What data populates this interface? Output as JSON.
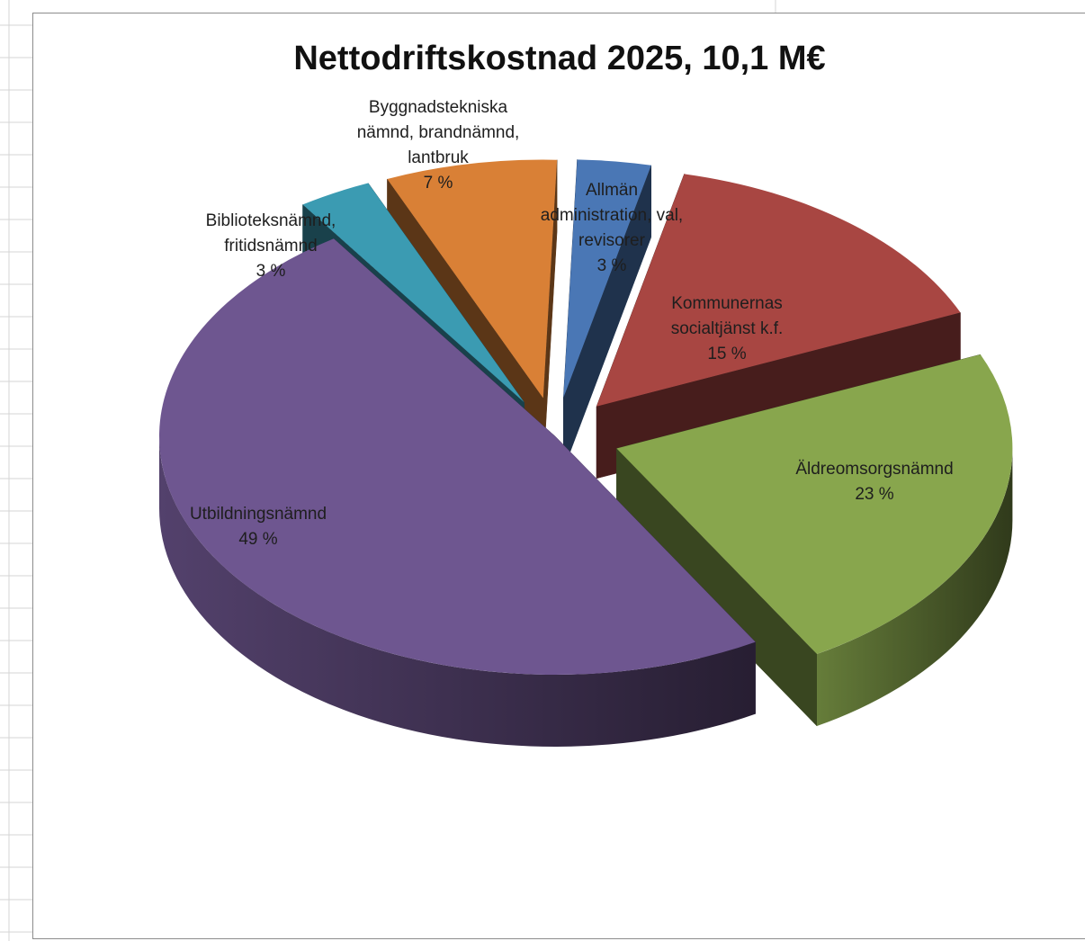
{
  "chart_data": {
    "type": "pie",
    "title": "Nettodriftskostnad 2025, 10,1 M€",
    "slices": [
      {
        "label_lines": [
          "Allmän",
          "administration, val,",
          "revisorer"
        ],
        "pct_text": "3 %",
        "value": 3,
        "color": "#4a77b5"
      },
      {
        "label_lines": [
          "Kommunernas",
          "socialtjänst k.f."
        ],
        "pct_text": "15 %",
        "value": 15,
        "color": "#a84642"
      },
      {
        "label_lines": [
          "Äldreomsorgsnämnd"
        ],
        "pct_text": "23 %",
        "value": 23,
        "color": "#88a64d"
      },
      {
        "label_lines": [
          "Utbildningsnämnd"
        ],
        "pct_text": "49 %",
        "value": 49,
        "color": "#6e5690"
      },
      {
        "label_lines": [
          "Biblioteksnämnd,",
          "fritidsnämnd"
        ],
        "pct_text": "3 %",
        "value": 3,
        "color": "#3b9bb2"
      },
      {
        "label_lines": [
          "Byggnadstekniska",
          "nämnd, brandnämnd,",
          "lantbruk"
        ],
        "pct_text": "7 %",
        "value": 7,
        "color": "#d98036"
      }
    ]
  }
}
